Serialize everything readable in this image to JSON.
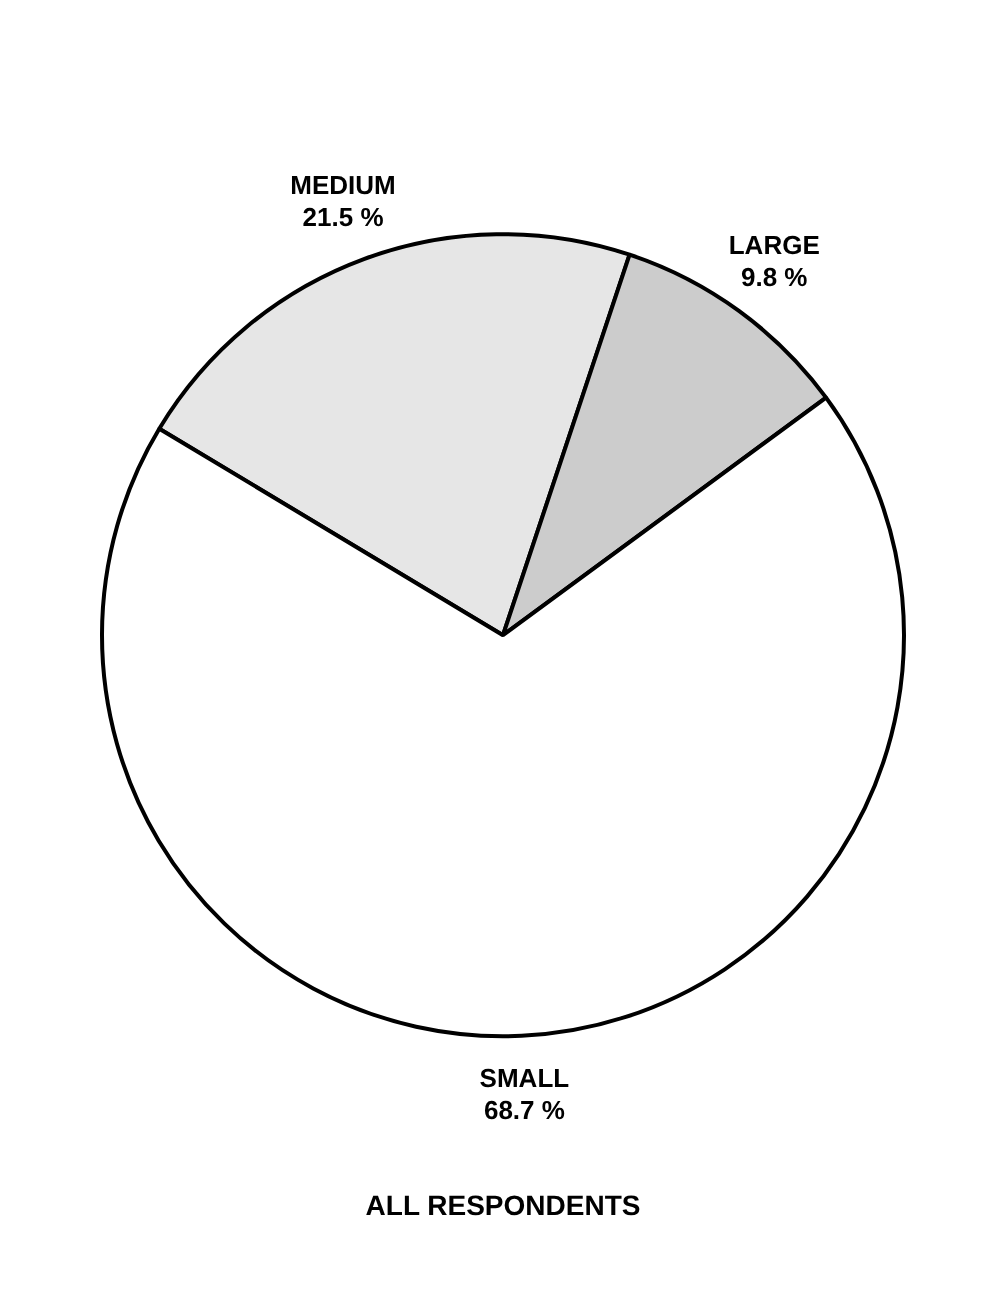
{
  "chart_data": {
    "type": "pie",
    "title": "ALL RESPONDENTS",
    "categories": [
      "MEDIUM",
      "LARGE",
      "SMALL"
    ],
    "values": [
      21.5,
      9.8,
      68.7
    ],
    "value_labels": [
      "21.5 %",
      "9.8 %",
      "68.7 %"
    ],
    "colors": [
      "#e6e6e6",
      "#cccccc",
      "#ffffff"
    ],
    "legend": false
  }
}
